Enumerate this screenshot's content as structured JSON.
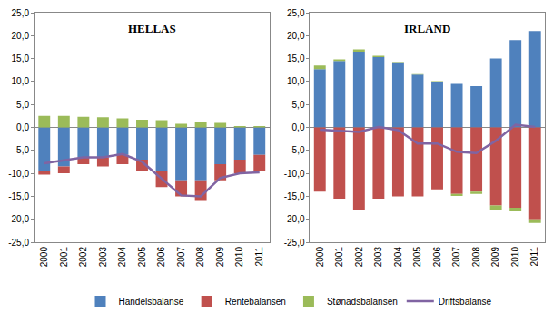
{
  "chart_data": [
    {
      "type": "bar",
      "title": "HELLAS",
      "categories": [
        "2000",
        "2001",
        "2002",
        "2003",
        "2004",
        "2005",
        "2006",
        "2007",
        "2008",
        "2009",
        "2010",
        "2011"
      ],
      "series": [
        {
          "name": "Handelsbalanse",
          "color": "#4f81bd",
          "values": [
            -9.5,
            -8.5,
            -6.5,
            -6.5,
            -6.0,
            -7.0,
            -9.5,
            -11.5,
            -11.5,
            -8.0,
            -7.0,
            -6.0
          ]
        },
        {
          "name": "Rentebalansen",
          "color": "#c0504d",
          "values": [
            -0.8,
            -1.5,
            -1.5,
            -2.0,
            -2.0,
            -2.5,
            -3.5,
            -3.5,
            -4.5,
            -3.5,
            -3.0,
            -3.5
          ]
        },
        {
          "name": "Stønadsbalansen",
          "color": "#9bbb59",
          "values": [
            2.5,
            2.5,
            2.3,
            2.2,
            2.0,
            1.7,
            1.6,
            0.8,
            1.2,
            1.0,
            0.3,
            0.3
          ]
        },
        {
          "name": "Driftsbalanse",
          "color": "#8064a2",
          "type": "line",
          "line_style": "solid",
          "values": [
            -7.8,
            -7.2,
            -6.5,
            -6.5,
            -5.8,
            -7.5,
            -11.2,
            -14.8,
            -15.0,
            -11.0,
            -10.0,
            -9.8
          ]
        }
      ],
      "ylim": [
        -25,
        25
      ],
      "yticks": [
        {
          "value": -25,
          "label": "-25,0"
        },
        {
          "value": -20,
          "label": "-20,0"
        },
        {
          "value": -15,
          "label": "-15,0"
        },
        {
          "value": -10,
          "label": "-10,0"
        },
        {
          "value": -5,
          "label": "-5,0"
        },
        {
          "value": 0,
          "label": "0,0"
        },
        {
          "value": 5,
          "label": "5,0"
        },
        {
          "value": 10,
          "label": "10,0"
        },
        {
          "value": 15,
          "label": "15,0"
        },
        {
          "value": 20,
          "label": "20,0"
        },
        {
          "value": 25,
          "label": "25,0"
        }
      ],
      "stacked": true,
      "grid": false,
      "legend": "bottom"
    },
    {
      "type": "bar",
      "title": "IRLAND",
      "categories": [
        "2000",
        "2001",
        "2002",
        "2003",
        "2004",
        "2005",
        "2006",
        "2007",
        "2008",
        "2009",
        "2010",
        "2011"
      ],
      "series": [
        {
          "name": "Handelsbalanse",
          "color": "#4f81bd",
          "values": [
            12.7,
            14.5,
            16.5,
            15.3,
            14.2,
            11.5,
            10.0,
            9.5,
            9.0,
            15.0,
            19.0,
            21.0
          ]
        },
        {
          "name": "Rentebalansen",
          "color": "#c0504d",
          "values": [
            -14.0,
            -15.5,
            -18.0,
            -15.5,
            -15.0,
            -15.0,
            -13.5,
            -14.5,
            -14.0,
            -17.0,
            -17.5,
            -20.0
          ]
        },
        {
          "name": "Stønadsbalansen",
          "color": "#9bbb59",
          "values": [
            0.8,
            0.3,
            0.5,
            0.3,
            0.1,
            0.1,
            0.1,
            -0.4,
            -0.5,
            -1.0,
            -0.8,
            -0.8
          ]
        },
        {
          "name": "Driftsbalanse",
          "color": "#8064a2",
          "type": "line",
          "line_style": "solid",
          "values": [
            -0.5,
            -0.7,
            -1.0,
            0.1,
            -0.6,
            -3.5,
            -3.5,
            -5.3,
            -5.6,
            -2.9,
            0.6,
            0.1
          ]
        }
      ],
      "ylim": [
        -25,
        25
      ],
      "yticks": [
        {
          "value": -25,
          "label": "-25,0"
        },
        {
          "value": -20,
          "label": "-20,0"
        },
        {
          "value": -15,
          "label": "-15,0"
        },
        {
          "value": -10,
          "label": "-10,0"
        },
        {
          "value": -5,
          "label": "-5,0"
        },
        {
          "value": 0,
          "label": "0,0"
        },
        {
          "value": 5,
          "label": "5,0"
        },
        {
          "value": 10,
          "label": "10,0"
        },
        {
          "value": 15,
          "label": "15,0"
        },
        {
          "value": 20,
          "label": "20,0"
        },
        {
          "value": 25,
          "label": "25,0"
        }
      ],
      "stacked": true,
      "grid": false,
      "legend": "bottom"
    }
  ]
}
